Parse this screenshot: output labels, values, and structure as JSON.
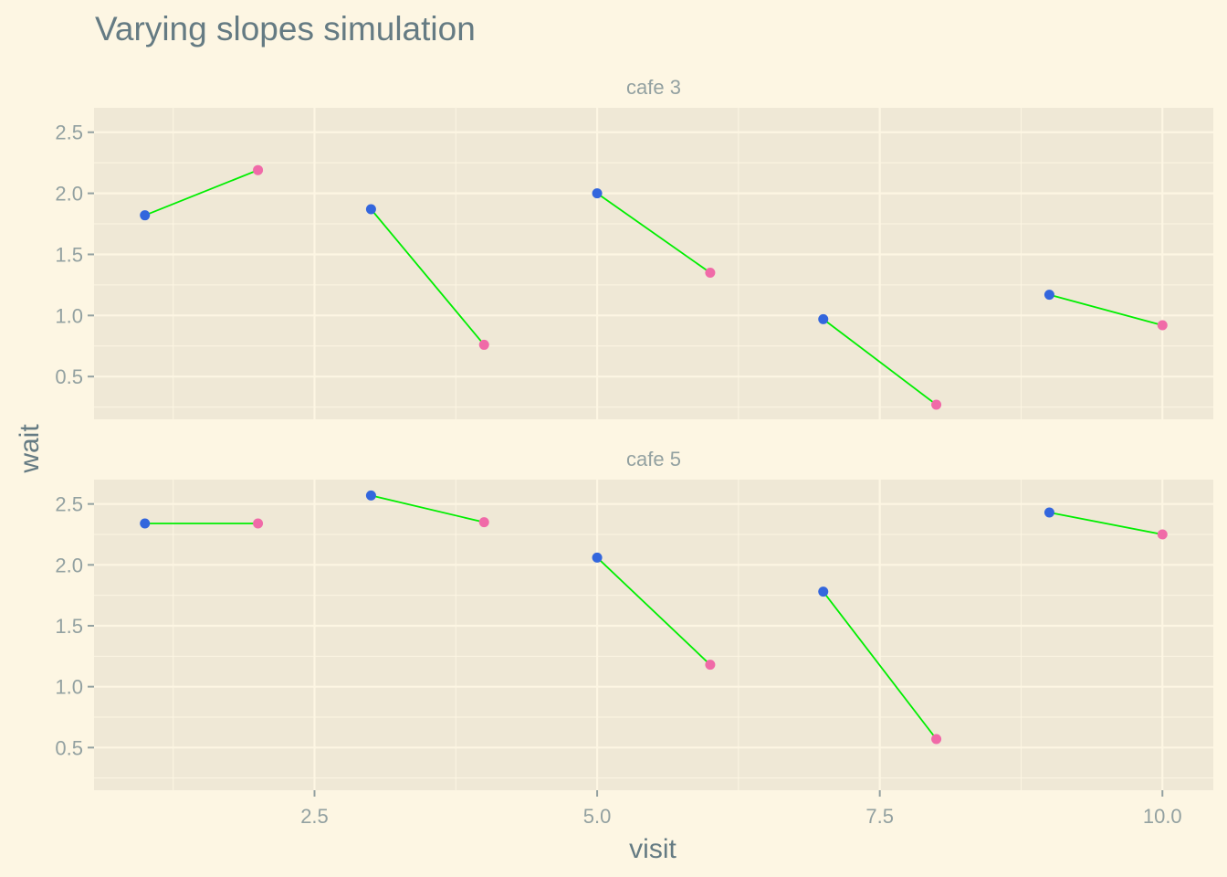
{
  "chart_data": {
    "type": "line",
    "title": "Varying slopes simulation",
    "xlabel": "visit",
    "ylabel": "wait",
    "xlim": [
      0.55,
      10.45
    ],
    "ylim": [
      0.15,
      2.7
    ],
    "x_ticks": [
      2.5,
      5.0,
      7.5,
      10.0
    ],
    "x_tick_labels": [
      "2.5",
      "5.0",
      "7.5",
      "10.0"
    ],
    "y_ticks": [
      0.5,
      1.0,
      1.5,
      2.0,
      2.5
    ],
    "y_tick_labels": [
      "0.5",
      "1.0",
      "1.5",
      "2.0",
      "2.5"
    ],
    "grid": true,
    "colors": {
      "background": "#fdf6e3",
      "panel": "#efe8d6",
      "grid": "#fdf6e3",
      "line": "#00ee00",
      "afternoon_point": "#3366dd",
      "morning_point": "#f06aa8",
      "text": "#657b83",
      "tick_text": "#93a1a1"
    },
    "panels": [
      {
        "label": "cafe 3",
        "segments": [
          {
            "x": [
              1,
              2
            ],
            "y": [
              1.82,
              2.19
            ]
          },
          {
            "x": [
              3,
              4
            ],
            "y": [
              1.87,
              0.76
            ]
          },
          {
            "x": [
              5,
              6
            ],
            "y": [
              2.0,
              1.35
            ]
          },
          {
            "x": [
              7,
              8
            ],
            "y": [
              0.97,
              0.27
            ]
          },
          {
            "x": [
              9,
              10
            ],
            "y": [
              1.17,
              0.92
            ]
          }
        ]
      },
      {
        "label": "cafe 5",
        "segments": [
          {
            "x": [
              1,
              2
            ],
            "y": [
              2.34,
              2.34
            ]
          },
          {
            "x": [
              3,
              4
            ],
            "y": [
              2.57,
              2.35
            ]
          },
          {
            "x": [
              5,
              6
            ],
            "y": [
              2.06,
              1.18
            ]
          },
          {
            "x": [
              7,
              8
            ],
            "y": [
              1.78,
              0.57
            ]
          },
          {
            "x": [
              9,
              10
            ],
            "y": [
              2.43,
              2.25
            ]
          }
        ]
      }
    ]
  }
}
